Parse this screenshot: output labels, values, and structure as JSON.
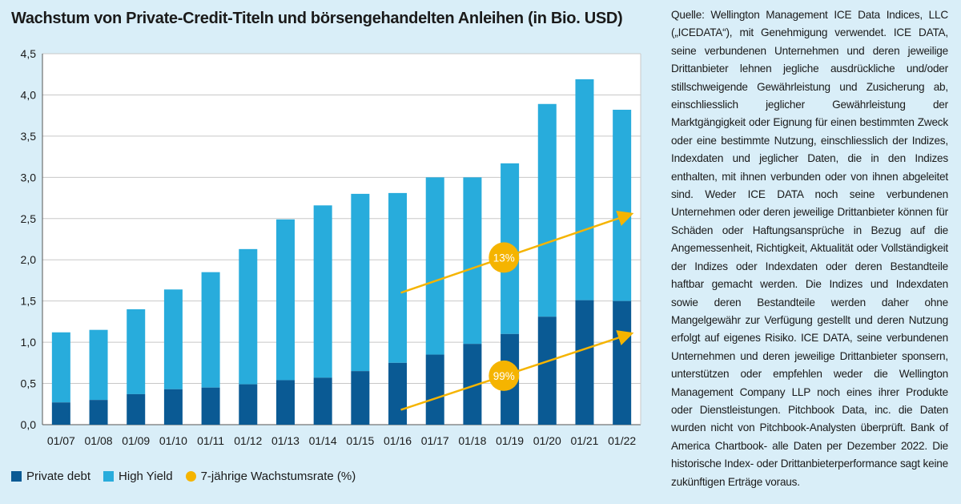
{
  "title": "Wachstum von Private-Credit-Titeln und börsengehandelten Anleihen (in Bio. USD)",
  "source_text": "Quelle: Wellington Management ICE Data Indices, LLC („ICEDATA“), mit Genehmigung verwendet. ICE DATA, seine verbundenen Unternehmen und deren jeweilige Drittanbieter lehnen jegliche ausdrückliche und/oder stillschweigende Gewährleistung und Zusicherung ab, einschliesslich jeglicher Gewährleistung der Marktgängigkeit oder Eignung für einen bestimmten Zweck oder eine bestimmte Nutzung, einschliesslich der Indizes, Indexdaten und jeglicher Daten, die in den Indizes enthalten, mit ihnen verbunden oder von ihnen abgeleitet sind. Weder ICE DATA noch seine verbundenen Unternehmen oder deren jeweilige Drittanbieter können für Schäden oder Haftungsansprüche in Bezug auf die Angemessenheit, Richtigkeit, Aktualität oder Vollständigkeit der Indizes oder Indexdaten oder deren Bestandteile haftbar gemacht werden. Die Indizes und Indexdaten sowie deren Bestandteile werden daher ohne Mangelgewähr zur Verfügung gestellt und deren Nutzung erfolgt auf eigenes Risiko. ICE DATA, seine verbundenen Unternehmen und deren jeweilige Drittanbieter sponsern, unterstützen oder empfehlen weder die Wellington Management Company LLP noch eines ihrer Produkte oder Dienstleistungen. Pitchbook Data, inc. die Daten wurden nicht von Pitchbook-Analysten überprüft. Bank of America Chartbook- alle Daten per Dezember 2022. Die historische Index- oder Drittanbieterperformance sagt keine zukünftigen Erträge voraus.",
  "colors": {
    "background": "#d9eef8",
    "plot_background": "#ffffff",
    "private_debt": "#0a5a94",
    "high_yield": "#28acdc",
    "growth": "#f5b400",
    "grid": "#c8c8c8"
  },
  "legend": [
    {
      "label": "Private debt",
      "color": "#0a5a94",
      "shape": "square"
    },
    {
      "label": "High Yield",
      "color": "#28acdc",
      "shape": "square"
    },
    {
      "label": "7-jährige Wachstumsrate (%)",
      "color": "#f5b400",
      "shape": "circle"
    }
  ],
  "chart_data": {
    "type": "bar",
    "stacked": true,
    "categories": [
      "01/07",
      "01/08",
      "01/09",
      "01/10",
      "01/11",
      "01/12",
      "01/13",
      "01/14",
      "01/15",
      "01/16",
      "01/17",
      "01/18",
      "01/19",
      "01/20",
      "01/21",
      "01/22"
    ],
    "series": [
      {
        "name": "Private debt",
        "values": [
          0.27,
          0.3,
          0.37,
          0.43,
          0.45,
          0.49,
          0.54,
          0.57,
          0.65,
          0.75,
          0.85,
          0.98,
          1.1,
          1.31,
          1.51,
          1.5
        ]
      },
      {
        "name": "High Yield",
        "values": [
          0.85,
          0.85,
          1.03,
          1.21,
          1.4,
          1.64,
          1.95,
          2.09,
          2.15,
          2.06,
          2.15,
          2.02,
          2.07,
          2.58,
          2.68,
          2.32
        ]
      }
    ],
    "totals": [
      1.12,
      1.15,
      1.4,
      1.64,
      1.85,
      2.13,
      2.49,
      2.66,
      2.8,
      2.81,
      3.0,
      3.0,
      3.17,
      3.89,
      4.19,
      3.82
    ],
    "ylim": [
      0,
      4.5
    ],
    "yticks": [
      "0,0",
      "0,5",
      "1,0",
      "1,5",
      "2,0",
      "2,5",
      "3,0",
      "3,5",
      "4,0",
      "4,5"
    ],
    "ytick_values": [
      0,
      0.5,
      1.0,
      1.5,
      2.0,
      2.5,
      3.0,
      3.5,
      4.0,
      4.5
    ],
    "grid": true,
    "annotations": [
      {
        "label": "13%",
        "series": "High Yield",
        "from": {
          "x": "01/16",
          "y": 1.6
        },
        "to": {
          "x": "01/22",
          "y": 2.55
        }
      },
      {
        "label": "99%",
        "series": "Private debt",
        "from": {
          "x": "01/16",
          "y": 0.18
        },
        "to": {
          "x": "01/22",
          "y": 1.1
        }
      }
    ]
  }
}
